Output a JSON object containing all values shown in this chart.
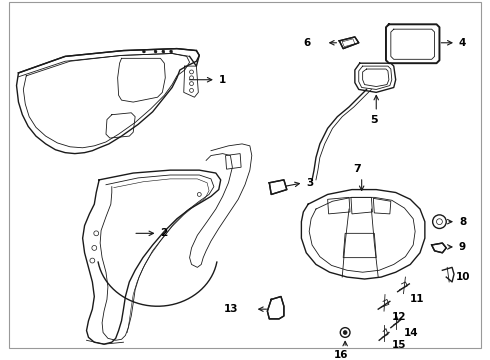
{
  "background_color": "#ffffff",
  "line_color": "#1a1a1a",
  "fig_width": 4.9,
  "fig_height": 3.6,
  "dpi": 100,
  "border_color": "#999999",
  "lw_main": 1.0,
  "lw_thin": 0.6,
  "lw_thick": 1.4,
  "label_fontsize": 7.5,
  "arrow_fontsize": 7.5
}
